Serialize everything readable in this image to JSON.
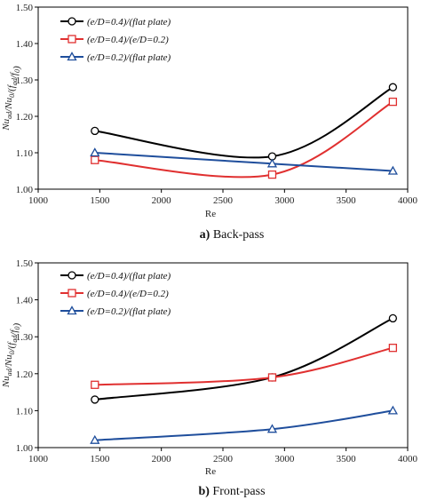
{
  "chart_data": [
    {
      "type": "line",
      "caption_tag": "a)",
      "caption_text": "Back-pass",
      "xlabel": "Re",
      "ylabel": "Nu_ad/Nu_0/(f_ad/f_0)",
      "xlim": [
        1000,
        4000
      ],
      "ylim": [
        1.0,
        1.5
      ],
      "xticks": [
        "1000",
        "1500",
        "2000",
        "2500",
        "3000",
        "3500",
        "4000"
      ],
      "yticks": [
        "1.00",
        "1.10",
        "1.20",
        "1.30",
        "1.40",
        "1.50"
      ],
      "legend_position": "top-left",
      "grid": false,
      "series": [
        {
          "name": "(e/D=0.4)/(flat plate)",
          "color": "#000000",
          "marker": "circle",
          "x": [
            1460,
            2900,
            3880
          ],
          "values": [
            1.16,
            1.09,
            1.28
          ]
        },
        {
          "name": "(e/D=0.4)/(e/D=0.2)",
          "color": "#e03030",
          "marker": "square",
          "x": [
            1460,
            2900,
            3880
          ],
          "values": [
            1.08,
            1.04,
            1.24
          ]
        },
        {
          "name": "(e/D=0.2)/(flat plate)",
          "color": "#1f4e9c",
          "marker": "triangle",
          "x": [
            1460,
            2900,
            3880
          ],
          "values": [
            1.1,
            1.07,
            1.05
          ]
        }
      ]
    },
    {
      "type": "line",
      "caption_tag": "b)",
      "caption_text": "Front-pass",
      "xlabel": "Re",
      "ylabel": "Nu_ad/Nu_0/(f_ad/f_0)",
      "xlim": [
        1000,
        4000
      ],
      "ylim": [
        1.0,
        1.5
      ],
      "xticks": [
        "1000",
        "1500",
        "2000",
        "2500",
        "3000",
        "3500",
        "4000"
      ],
      "yticks": [
        "1.00",
        "1.10",
        "1.20",
        "1.30",
        "1.40",
        "1.50"
      ],
      "legend_position": "top-left",
      "grid": false,
      "series": [
        {
          "name": "(e/D=0.4)/(flat plate)",
          "color": "#000000",
          "marker": "circle",
          "x": [
            1460,
            2900,
            3880
          ],
          "values": [
            1.13,
            1.19,
            1.35
          ]
        },
        {
          "name": "(e/D=0.4)/(e/D=0.2)",
          "color": "#e03030",
          "marker": "square",
          "x": [
            1460,
            2900,
            3880
          ],
          "values": [
            1.17,
            1.19,
            1.27
          ]
        },
        {
          "name": "(e/D=0.2)/(flat plate)",
          "color": "#1f4e9c",
          "marker": "triangle",
          "x": [
            1460,
            2900,
            3880
          ],
          "values": [
            1.02,
            1.05,
            1.1
          ]
        }
      ]
    }
  ]
}
